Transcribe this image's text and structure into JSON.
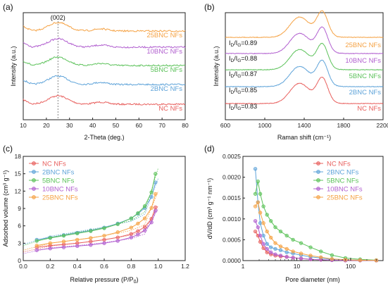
{
  "chart_data": [
    {
      "panel": "(a)",
      "type": "line",
      "xlabel": "2-Theta (deg.)",
      "ylabel": "Intensity (a.u.)",
      "xlim": [
        10,
        80
      ],
      "xticks": [
        10,
        20,
        30,
        40,
        50,
        60,
        70,
        80
      ],
      "annotation": {
        "text": "(002)",
        "x": 25
      },
      "series": [
        {
          "name": "NC NFs",
          "color": "#e8605e"
        },
        {
          "name": "2BNC NFs",
          "color": "#5ea3d9"
        },
        {
          "name": "5BNC NFs",
          "color": "#5cc25a"
        },
        {
          "name": "10BNC NFs",
          "color": "#b15fcf"
        },
        {
          "name": "25BNC NFs",
          "color": "#f5a244"
        }
      ]
    },
    {
      "panel": "(b)",
      "type": "line",
      "xlabel": "Raman shift (cm⁻¹)",
      "ylabel": "Intensity (a.u.)",
      "xlim": [
        600,
        2200
      ],
      "xticks": [
        600,
        1000,
        1400,
        1800,
        2200
      ],
      "series": [
        {
          "name": "NC NFs",
          "color": "#e8605e",
          "ratio_label": "I",
          "ratio_sub1": "D",
          "ratio_mid": "/I",
          "ratio_sub2": "G",
          "ratio_value": "=0.83"
        },
        {
          "name": "2BNC NFs",
          "color": "#5ea3d9",
          "ratio_label": "I",
          "ratio_sub1": "D",
          "ratio_mid": "/I",
          "ratio_sub2": "G",
          "ratio_value": "=0.85"
        },
        {
          "name": "5BNC NFs",
          "color": "#5cc25a",
          "ratio_label": "I",
          "ratio_sub1": "D",
          "ratio_mid": "/I",
          "ratio_sub2": "G",
          "ratio_value": "=0.87"
        },
        {
          "name": "10BNC NFs",
          "color": "#b15fcf",
          "ratio_label": "I",
          "ratio_sub1": "D",
          "ratio_mid": "/I",
          "ratio_sub2": "G",
          "ratio_value": "=0.88"
        },
        {
          "name": "25BNC NFs",
          "color": "#f5a244",
          "ratio_label": "I",
          "ratio_sub1": "D",
          "ratio_mid": "/I",
          "ratio_sub2": "G",
          "ratio_value": "=0.89"
        }
      ]
    },
    {
      "panel": "(c)",
      "type": "scatter",
      "xlabel_main": "Relative pressure (P/P",
      "xlabel_sub": "0",
      "xlabel_end": ")",
      "ylabel": "Adsorbed volume (cm³ g⁻¹)",
      "xlim": [
        0,
        1.2
      ],
      "ylim": [
        0,
        18
      ],
      "xticks": [
        0.0,
        0.2,
        0.4,
        0.6,
        0.8,
        1.0,
        1.2
      ],
      "yticks": [
        0,
        3,
        6,
        9,
        12,
        15,
        18
      ],
      "legend_position": "top-left",
      "x": [
        0.1,
        0.2,
        0.3,
        0.4,
        0.5,
        0.6,
        0.7,
        0.8,
        0.85,
        0.9,
        0.95,
        0.98
      ],
      "series": [
        {
          "name": "NC NFs",
          "color": "#e8605e",
          "values": [
            2.3,
            2.6,
            2.8,
            3.0,
            3.3,
            3.6,
            4.0,
            4.6,
            5.1,
            5.8,
            7.2,
            9.2
          ],
          "desorption": [
            1.5,
            2.5,
            3.0,
            3.6,
            4.4,
            5.2,
            9.5
          ]
        },
        {
          "name": "2BNC NFs",
          "color": "#5ea3d9",
          "values": [
            3.6,
            4.0,
            4.4,
            4.8,
            5.2,
            5.7,
            6.4,
            7.3,
            8.1,
            9.1,
            11.0,
            13.5
          ],
          "desorption": [
            2.8,
            4.2,
            5.0,
            5.8,
            6.8,
            8.0,
            14.2
          ]
        },
        {
          "name": "5BNC NFs",
          "color": "#5cc25a",
          "values": [
            3.4,
            3.9,
            4.3,
            4.7,
            5.1,
            5.6,
            6.3,
            7.3,
            8.2,
            9.4,
            11.8,
            15.0
          ],
          "desorption": [
            2.6,
            4.0,
            4.9,
            5.7,
            6.9,
            8.4,
            16.0
          ]
        },
        {
          "name": "10BNC NFs",
          "color": "#b15fcf",
          "values": [
            1.8,
            2.1,
            2.3,
            2.5,
            2.7,
            3.0,
            3.4,
            4.0,
            4.5,
            5.2,
            6.6,
            8.6
          ],
          "desorption": [
            1.2,
            2.2,
            2.6,
            3.1,
            3.8,
            4.6,
            9.0
          ]
        },
        {
          "name": "25BNC NFs",
          "color": "#f5a244",
          "values": [
            2.6,
            3.0,
            3.3,
            3.6,
            3.9,
            4.3,
            4.9,
            5.7,
            6.4,
            7.3,
            9.1,
            11.5
          ],
          "desorption": [
            1.8,
            3.0,
            3.6,
            4.3,
            5.2,
            6.2,
            12.0
          ]
        }
      ],
      "desorption_x": [
        0.0,
        0.2,
        0.4,
        0.6,
        0.8,
        0.9,
        1.0
      ]
    },
    {
      "panel": "(d)",
      "type": "scatter",
      "xlabel": "Pore diameter (nm)",
      "ylabel": "dV/dD (cm³ g⁻¹ nm⁻¹)",
      "xscale": "log",
      "xlim": [
        1,
        400
      ],
      "ylim": [
        0,
        0.0025
      ],
      "xticks": [
        1,
        10,
        100
      ],
      "yticks": [
        0.0,
        0.0005,
        0.001,
        0.0015,
        0.002,
        0.0025
      ],
      "ytick_labels": [
        "0.0000",
        "0.0005",
        "0.0010",
        "0.0015",
        "0.0020",
        "0.0025"
      ],
      "legend_position": "top-right",
      "x": [
        1.7,
        1.9,
        2.1,
        2.4,
        2.8,
        3.3,
        4.0,
        5.0,
        6.5,
        8.5,
        12,
        18,
        28,
        45,
        80,
        150,
        300
      ],
      "series": [
        {
          "name": "NC NFs",
          "color": "#e8605e",
          "values": [
            0.0007,
            0.0006,
            0.00045,
            0.0003,
            0.0002,
            0.00015,
            0.00012,
            0.0001,
            9e-05,
            7e-05,
            5e-05,
            3e-05,
            2e-05,
            1e-05,
            5e-06,
            3e-06,
            2e-06
          ]
        },
        {
          "name": "2BNC NFs",
          "color": "#5ea3d9",
          "values": [
            0.0022,
            0.0014,
            0.0009,
            0.0006,
            0.0004,
            0.00032,
            0.00028,
            0.00025,
            0.0002,
            0.00017,
            0.00013,
            9e-05,
            6e-05,
            3e-05,
            2e-05,
            1e-05,
            5e-06
          ]
        },
        {
          "name": "5BNC NFs",
          "color": "#5cc25a",
          "values": [
            0.0016,
            0.0019,
            0.0016,
            0.0013,
            0.0011,
            0.00095,
            0.0008,
            0.0007,
            0.0006,
            0.0005,
            0.00042,
            0.00032,
            0.00022,
            0.00013,
            6e-05,
            3e-05,
            1e-05
          ]
        },
        {
          "name": "10BNC NFs",
          "color": "#b15fcf",
          "values": [
            0.00095,
            0.0008,
            0.0006,
            0.0004,
            0.00028,
            0.0002,
            0.00015,
            0.00012,
            9e-05,
            7e-05,
            5e-05,
            3e-05,
            2e-05,
            1e-05,
            5e-06,
            3e-06,
            2e-06
          ]
        },
        {
          "name": "25BNC NFs",
          "color": "#f5a244",
          "values": [
            0.0013,
            0.0014,
            0.00115,
            0.0009,
            0.0007,
            0.00055,
            0.00042,
            0.00034,
            0.00028,
            0.00022,
            0.00017,
            0.00012,
            8e-05,
            4e-05,
            2e-05,
            1e-05,
            5e-06
          ]
        }
      ]
    }
  ]
}
